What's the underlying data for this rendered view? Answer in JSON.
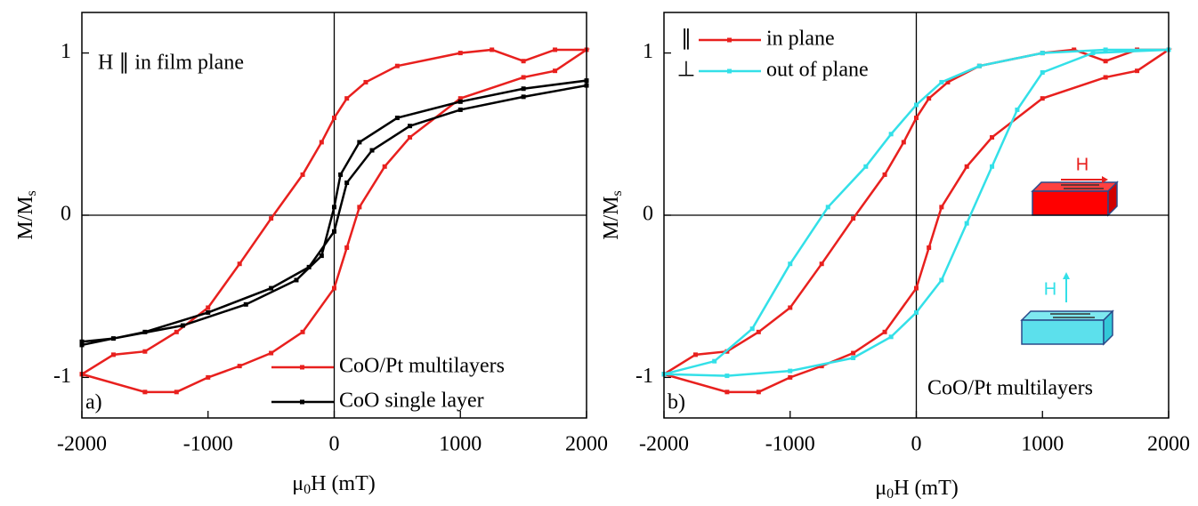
{
  "chart_data": [
    {
      "type": "line",
      "panel_label": "a)",
      "annotation": "H ∥ in film plane",
      "xlabel": [
        "μ",
        "0",
        "H (mT)"
      ],
      "ylabel": [
        "M/M",
        "s"
      ],
      "xlim": [
        -2000,
        2000
      ],
      "ylim": [
        -1.25,
        1.25
      ],
      "xticks": [
        -2000,
        -1000,
        0,
        1000,
        2000
      ],
      "yticks": [
        -1,
        0,
        1
      ],
      "legend": "lower right",
      "series": [
        {
          "name": "CoO/Pt multilayers",
          "color": "#e8201e",
          "x": [
            -2000,
            -1500,
            -1250,
            -1000,
            -750,
            -500,
            -250,
            0,
            100,
            200,
            400,
            600,
            1000,
            1500,
            1750,
            2000,
            1750,
            1500,
            1250,
            1000,
            500,
            250,
            100,
            0,
            -100,
            -250,
            -500,
            -750,
            -1000,
            -1250,
            -1500,
            -1750,
            -2000
          ],
          "values": [
            -0.98,
            -1.09,
            -1.09,
            -1.0,
            -0.93,
            -0.85,
            -0.72,
            -0.45,
            -0.2,
            0.05,
            0.3,
            0.48,
            0.72,
            0.85,
            0.89,
            1.02,
            1.02,
            0.95,
            1.02,
            1.0,
            0.92,
            0.82,
            0.72,
            0.6,
            0.45,
            0.25,
            -0.02,
            -0.3,
            -0.57,
            -0.72,
            -0.84,
            -0.86,
            -0.98
          ]
        },
        {
          "name": "CoO single layer",
          "color": "#000000",
          "x": [
            -2000,
            -1500,
            -1000,
            -500,
            -200,
            0,
            100,
            300,
            600,
            1000,
            1500,
            2000,
            2000,
            1500,
            1000,
            500,
            200,
            50,
            0,
            -100,
            -300,
            -700,
            -1200,
            -1750,
            -2000
          ],
          "values": [
            -0.8,
            -0.72,
            -0.6,
            -0.45,
            -0.32,
            -0.1,
            0.2,
            0.4,
            0.55,
            0.65,
            0.73,
            0.8,
            0.83,
            0.78,
            0.7,
            0.6,
            0.45,
            0.25,
            0.05,
            -0.25,
            -0.4,
            -0.55,
            -0.68,
            -0.76,
            -0.78
          ]
        }
      ]
    },
    {
      "type": "line",
      "panel_label": "b)",
      "annotation": "CoO/Pt multilayers",
      "xlabel": [
        "μ",
        "0",
        "H (mT)"
      ],
      "ylabel": [
        "M/M",
        "s"
      ],
      "xlim": [
        -2000,
        2000
      ],
      "ylim": [
        -1.25,
        1.25
      ],
      "xticks": [
        -2000,
        -1000,
        0,
        1000,
        2000
      ],
      "yticks": [
        -1,
        0,
        1
      ],
      "legend": "upper left",
      "legend_symbols": [
        "∥",
        "⊥"
      ],
      "inset_labels": [
        "H",
        "H"
      ],
      "series": [
        {
          "name": "in plane",
          "color": "#e8201e",
          "x": [
            -2000,
            -1500,
            -1250,
            -1000,
            -750,
            -500,
            -250,
            0,
            100,
            200,
            400,
            600,
            1000,
            1500,
            1750,
            2000,
            1750,
            1500,
            1250,
            1000,
            500,
            250,
            100,
            0,
            -100,
            -250,
            -500,
            -750,
            -1000,
            -1250,
            -1500,
            -1750,
            -2000
          ],
          "values": [
            -0.98,
            -1.09,
            -1.09,
            -1.0,
            -0.93,
            -0.85,
            -0.72,
            -0.45,
            -0.2,
            0.05,
            0.3,
            0.48,
            0.72,
            0.85,
            0.89,
            1.02,
            1.02,
            0.95,
            1.02,
            1.0,
            0.92,
            0.82,
            0.72,
            0.6,
            0.45,
            0.25,
            -0.02,
            -0.3,
            -0.57,
            -0.72,
            -0.84,
            -0.86,
            -0.98
          ]
        },
        {
          "name": "out of plane",
          "color": "#33e0e8",
          "x": [
            -2000,
            -1500,
            -1000,
            -500,
            -200,
            0,
            200,
            400,
            600,
            800,
            1000,
            1400,
            2000,
            1500,
            1000,
            500,
            200,
            0,
            -200,
            -400,
            -700,
            -1000,
            -1300,
            -1600,
            -2000
          ],
          "values": [
            -0.98,
            -0.99,
            -0.96,
            -0.88,
            -0.75,
            -0.6,
            -0.4,
            -0.05,
            0.3,
            0.65,
            0.88,
            1.0,
            1.02,
            1.02,
            1.0,
            0.92,
            0.82,
            0.68,
            0.5,
            0.3,
            0.05,
            -0.3,
            -0.7,
            -0.9,
            -0.98
          ]
        }
      ]
    }
  ]
}
